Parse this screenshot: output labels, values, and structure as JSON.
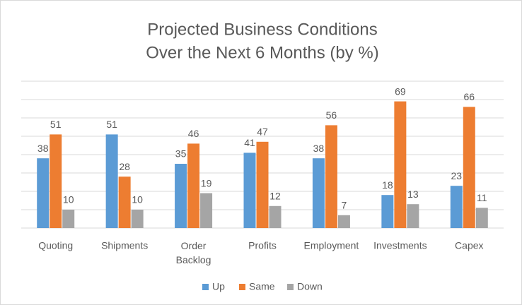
{
  "chart_data": {
    "type": "bar",
    "title": [
      "Projected Business Conditions",
      "Over the Next 6 Months (by %)"
    ],
    "categories": [
      "Quoting",
      "Shipments",
      "Order Backlog",
      "Profits",
      "Employment",
      "Investments",
      "Capex"
    ],
    "series": [
      {
        "name": "Up",
        "color": "#5b9bd5",
        "values": [
          38,
          51,
          35,
          41,
          38,
          18,
          23
        ]
      },
      {
        "name": "Same",
        "color": "#ed7d31",
        "values": [
          51,
          28,
          46,
          47,
          56,
          69,
          66
        ]
      },
      {
        "name": "Down",
        "color": "#a5a5a5",
        "values": [
          10,
          10,
          19,
          12,
          7,
          13,
          11
        ]
      }
    ],
    "ylim": [
      0,
      80
    ],
    "yticks": [
      0,
      10,
      20,
      30,
      40,
      50,
      60,
      70,
      80
    ],
    "grid": true,
    "legend": "bottom"
  }
}
